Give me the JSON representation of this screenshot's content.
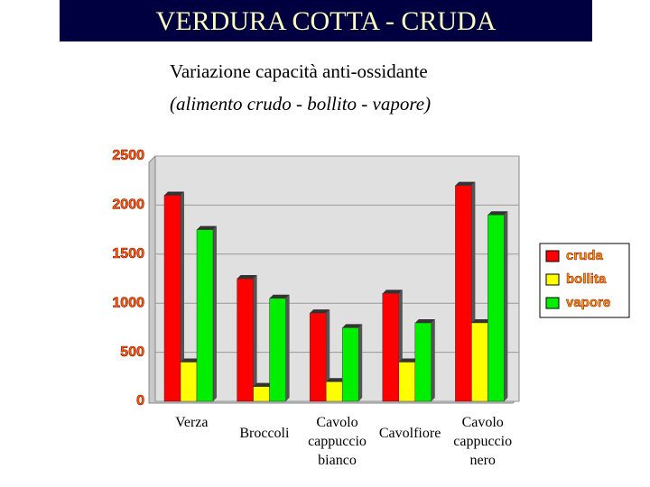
{
  "chart_data": {
    "type": "bar",
    "title": "VERDURA COTTA - CRUDA",
    "subtitle": [
      "Variazione capacità anti-ossidante",
      "(alimento crudo - bollito - vapore)"
    ],
    "categories": [
      "Verza",
      "Broccoli",
      "Cavolo cappuccio bianco",
      "Cavolfiore",
      "Cavolo cappuccio nero"
    ],
    "series": [
      {
        "name": "cruda",
        "color": "#ff0000",
        "values": [
          2100,
          1250,
          900,
          1100,
          2200
        ]
      },
      {
        "name": "bollita",
        "color": "#ffff00",
        "values": [
          400,
          150,
          200,
          400,
          800
        ]
      },
      {
        "name": "vapore",
        "color": "#00ee00",
        "values": [
          1750,
          1050,
          750,
          800,
          1900
        ]
      }
    ],
    "ylim": [
      0,
      2500
    ],
    "yticks": [
      0,
      500,
      1000,
      1500,
      2000,
      2500
    ],
    "grid": true,
    "legend": "right"
  }
}
